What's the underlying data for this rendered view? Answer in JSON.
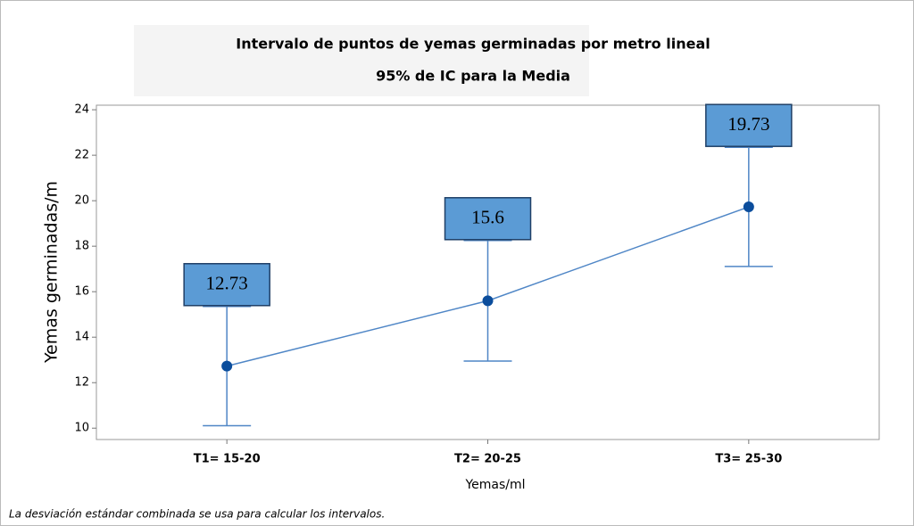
{
  "chart_data": {
    "type": "interval",
    "title": "Intervalo de puntos de yemas germinadas por metro lineal",
    "subtitle": "95% de IC para la Media",
    "x_label": "Yemas/ml",
    "y_label": "Yemas germinadas/m",
    "footnote": "La desviación estándar combinada se usa para calcular los intervalos.",
    "categories": [
      "T1= 15-20",
      "T2= 20-25",
      "T3= 25-30"
    ],
    "values": [
      12.73,
      15.6,
      19.73
    ],
    "errors": [
      2.62,
      2.65,
      2.62
    ],
    "color": "#4f86c6",
    "point_color": "#0b4d9c",
    "label_color": "#5b9bd5",
    "ylim": [
      9.5,
      24.2
    ],
    "yticks": [
      10,
      12,
      14,
      16,
      18,
      20,
      22,
      24
    ]
  }
}
